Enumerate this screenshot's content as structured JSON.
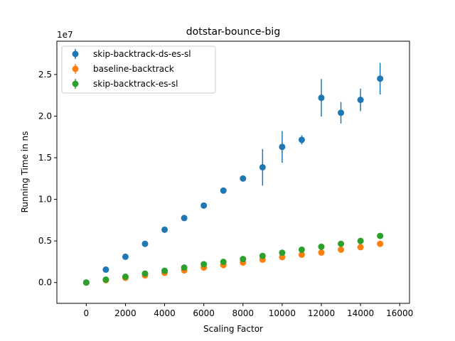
{
  "chart_data": {
    "type": "scatter",
    "title": "dotstar-bounce-big",
    "xlabel": "Scaling Factor",
    "ylabel": "Running Time in ns",
    "y_offset_text": "1e7",
    "xlim": [
      -1500,
      16500
    ],
    "ylim": [
      -2500000,
      29000000
    ],
    "x_ticks": [
      0,
      2000,
      4000,
      6000,
      8000,
      10000,
      12000,
      14000,
      16000
    ],
    "x_tick_labels": [
      "0",
      "2000",
      "4000",
      "6000",
      "8000",
      "10000",
      "12000",
      "14000",
      "16000"
    ],
    "y_ticks": [
      0,
      5000000,
      10000000,
      15000000,
      20000000,
      25000000
    ],
    "y_tick_labels": [
      "0.0",
      "0.5",
      "1.0",
      "1.5",
      "2.0",
      "2.5"
    ],
    "grid": false,
    "legend_position": "top-left",
    "series": [
      {
        "name": "skip-backtrack-ds-es-sl",
        "color": "#1f77b4",
        "x": [
          0,
          1000,
          2000,
          3000,
          4000,
          5000,
          6000,
          7000,
          8000,
          9000,
          10000,
          11000,
          12000,
          13000,
          14000,
          15000
        ],
        "y": [
          0,
          1550000,
          3100000,
          4650000,
          6350000,
          7750000,
          9250000,
          11050000,
          12500000,
          13850000,
          16300000,
          17150000,
          22200000,
          20400000,
          21950000,
          24500000
        ],
        "yerr": [
          0,
          0,
          0,
          0,
          0,
          0,
          0,
          0,
          0,
          2200000,
          1900000,
          550000,
          2250000,
          1300000,
          1350000,
          1900000
        ]
      },
      {
        "name": "baseline-backtrack",
        "color": "#ff7f0e",
        "x": [
          0,
          1000,
          2000,
          3000,
          4000,
          5000,
          6000,
          7000,
          8000,
          9000,
          10000,
          11000,
          12000,
          13000,
          14000,
          15000
        ],
        "y": [
          0,
          280000,
          570000,
          860000,
          1160000,
          1460000,
          1800000,
          2100000,
          2400000,
          2750000,
          3050000,
          3350000,
          3600000,
          3950000,
          4250000,
          4650000
        ],
        "yerr": [
          0,
          0,
          0,
          0,
          0,
          0,
          0,
          0,
          0,
          0,
          0,
          0,
          0,
          0,
          0,
          0
        ]
      },
      {
        "name": "skip-backtrack-es-sl",
        "color": "#2ca02c",
        "x": [
          0,
          1000,
          2000,
          3000,
          4000,
          5000,
          6000,
          7000,
          8000,
          9000,
          10000,
          11000,
          12000,
          13000,
          14000,
          15000
        ],
        "y": [
          0,
          350000,
          700000,
          1080000,
          1420000,
          1800000,
          2200000,
          2480000,
          2820000,
          3200000,
          3580000,
          3950000,
          4300000,
          4650000,
          5000000,
          5600000
        ],
        "yerr": [
          0,
          0,
          0,
          0,
          0,
          0,
          0,
          0,
          0,
          0,
          0,
          0,
          0,
          0,
          0,
          0
        ]
      }
    ]
  }
}
